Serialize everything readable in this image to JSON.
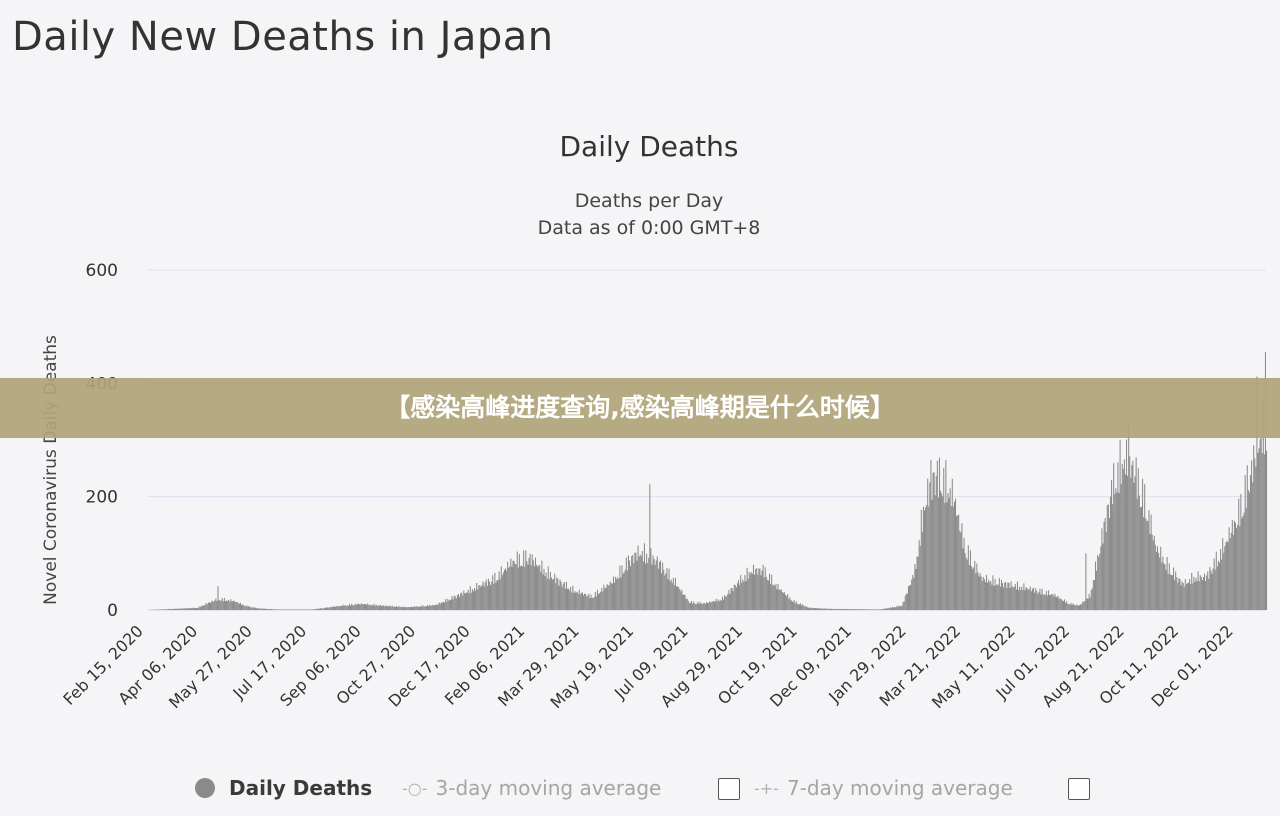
{
  "page": {
    "title": "Daily New Deaths in Japan"
  },
  "banner": {
    "text": "【感染高峰进度查询,感染高峰期是什么时候】"
  },
  "legend": {
    "daily": "Daily Deaths",
    "ma3": "3-day moving average",
    "ma7": "7-day moving average"
  },
  "colors": {
    "bar": "#8c8c8c",
    "grid": "#dde0ee",
    "axis": "#cfd2e4",
    "banner": "#b0a47a"
  },
  "chart_data": {
    "type": "bar",
    "title": "Daily Deaths",
    "subtitle": "Deaths per Day",
    "subtitle2": "Data as of 0:00 GMT+8",
    "ylabel": "Novel Coronavirus Daily Deaths",
    "xlabel": "",
    "ylim": [
      0,
      600
    ],
    "yticks": [
      0,
      200,
      400,
      600
    ],
    "grid": true,
    "xtick_labels": [
      "Feb 15, 2020",
      "Apr 06, 2020",
      "May 27, 2020",
      "Jul 17, 2020",
      "Sep 06, 2020",
      "Oct 27, 2020",
      "Dec 17, 2020",
      "Feb 06, 2021",
      "Mar 29, 2021",
      "May 19, 2021",
      "Jul 09, 2021",
      "Aug 29, 2021",
      "Oct 19, 2021",
      "Dec 09, 2021",
      "Jan 29, 2022",
      "Mar 21, 2022",
      "May 11, 2022",
      "Jul 01, 2022",
      "Aug 21, 2022",
      "Oct 11, 2022",
      "Dec 01, 2022"
    ],
    "x_start": "2020-02-15",
    "x_end": "2022-12-27",
    "series": [
      {
        "name": "Daily Deaths",
        "points": [
          [
            "2020-02-15",
            0
          ],
          [
            "2020-04-01",
            4
          ],
          [
            "2020-04-20",
            20
          ],
          [
            "2020-05-05",
            16
          ],
          [
            "2020-05-15",
            8
          ],
          [
            "2020-05-27",
            3
          ],
          [
            "2020-06-15",
            1
          ],
          [
            "2020-07-17",
            1
          ],
          [
            "2020-08-15",
            8
          ],
          [
            "2020-09-01",
            11
          ],
          [
            "2020-09-20",
            8
          ],
          [
            "2020-10-15",
            5
          ],
          [
            "2020-11-10",
            9
          ],
          [
            "2020-11-30",
            26
          ],
          [
            "2020-12-17",
            40
          ],
          [
            "2021-01-05",
            58
          ],
          [
            "2021-01-22",
            88
          ],
          [
            "2021-02-05",
            95
          ],
          [
            "2021-02-20",
            70
          ],
          [
            "2021-03-05",
            52
          ],
          [
            "2021-03-20",
            34
          ],
          [
            "2021-04-05",
            24
          ],
          [
            "2021-04-25",
            52
          ],
          [
            "2021-05-10",
            90
          ],
          [
            "2021-05-20",
            104
          ],
          [
            "2021-06-05",
            88
          ],
          [
            "2021-06-20",
            54
          ],
          [
            "2021-07-05",
            14
          ],
          [
            "2021-07-20",
            12
          ],
          [
            "2021-08-05",
            20
          ],
          [
            "2021-08-20",
            50
          ],
          [
            "2021-09-01",
            70
          ],
          [
            "2021-09-12",
            72
          ],
          [
            "2021-09-25",
            42
          ],
          [
            "2021-10-10",
            16
          ],
          [
            "2021-10-25",
            4
          ],
          [
            "2021-11-15",
            2
          ],
          [
            "2021-12-31",
            1
          ],
          [
            "2022-01-20",
            8
          ],
          [
            "2022-02-01",
            70
          ],
          [
            "2022-02-10",
            190
          ],
          [
            "2022-02-20",
            244
          ],
          [
            "2022-03-01",
            230
          ],
          [
            "2022-03-10",
            196
          ],
          [
            "2022-03-20",
            110
          ],
          [
            "2022-04-05",
            56
          ],
          [
            "2022-04-25",
            48
          ],
          [
            "2022-05-20",
            38
          ],
          [
            "2022-06-10",
            28
          ],
          [
            "2022-06-25",
            12
          ],
          [
            "2022-07-05",
            8
          ],
          [
            "2022-07-15",
            26
          ],
          [
            "2022-07-25",
            120
          ],
          [
            "2022-08-05",
            222
          ],
          [
            "2022-08-15",
            270
          ],
          [
            "2022-08-25",
            252
          ],
          [
            "2022-09-05",
            188
          ],
          [
            "2022-09-15",
            110
          ],
          [
            "2022-09-25",
            80
          ],
          [
            "2022-10-10",
            46
          ],
          [
            "2022-10-20",
            58
          ],
          [
            "2022-11-01",
            60
          ],
          [
            "2022-11-15",
            105
          ],
          [
            "2022-11-30",
            165
          ],
          [
            "2022-12-12",
            245
          ],
          [
            "2022-12-20",
            300
          ],
          [
            "2022-12-27",
            330
          ]
        ],
        "spikes": [
          [
            "2020-04-20",
            42
          ],
          [
            "2021-05-29",
            222
          ],
          [
            "2022-07-11",
            100
          ],
          [
            "2022-02-16",
            265
          ],
          [
            "2022-08-20",
            330
          ],
          [
            "2022-12-18",
            412
          ],
          [
            "2022-12-26",
            455
          ]
        ]
      }
    ]
  }
}
